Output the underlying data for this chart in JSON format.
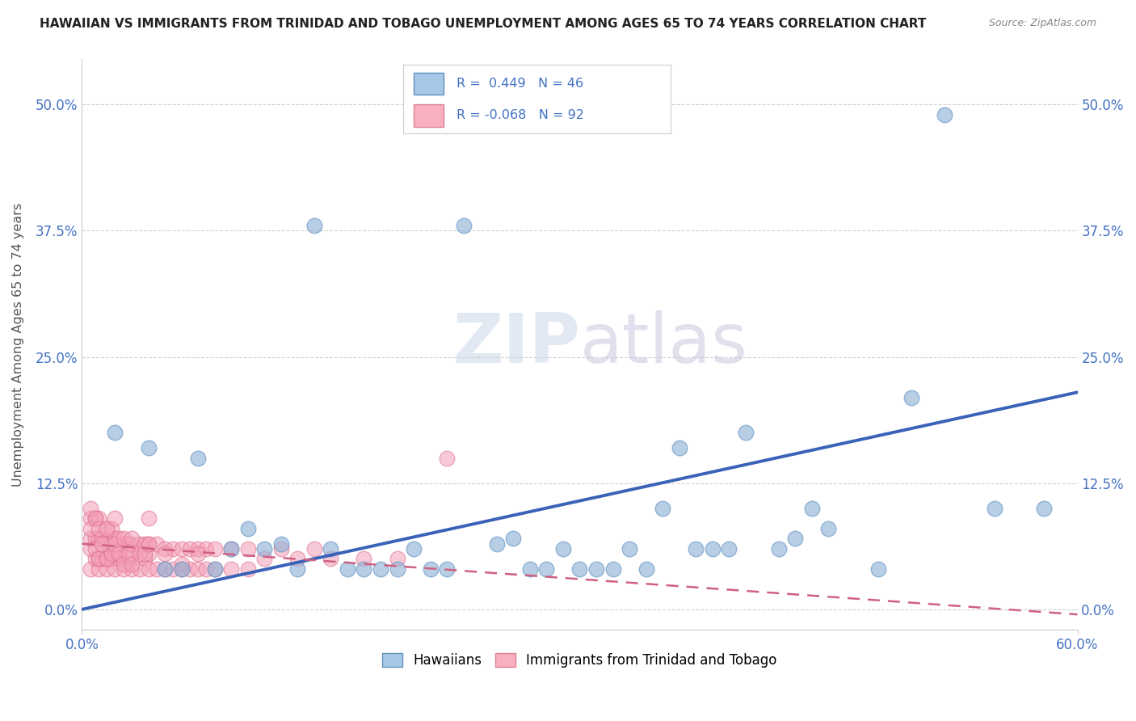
{
  "title": "HAWAIIAN VS IMMIGRANTS FROM TRINIDAD AND TOBAGO UNEMPLOYMENT AMONG AGES 65 TO 74 YEARS CORRELATION CHART",
  "source": "Source: ZipAtlas.com",
  "ylabel_label": "Unemployment Among Ages 65 to 74 years",
  "watermark_zip": "ZIP",
  "watermark_atlas": "atlas",
  "xlim": [
    0.0,
    0.6
  ],
  "ylim": [
    -0.02,
    0.545
  ],
  "yticks": [
    0.0,
    0.125,
    0.25,
    0.375,
    0.5
  ],
  "xticks": [
    0.0,
    0.6
  ],
  "blue_R": 0.449,
  "blue_N": 46,
  "pink_R": -0.068,
  "pink_N": 92,
  "blue_scatter_x": [
    0.02,
    0.04,
    0.07,
    0.08,
    0.09,
    0.1,
    0.12,
    0.13,
    0.15,
    0.16,
    0.18,
    0.2,
    0.22,
    0.27,
    0.3,
    0.33,
    0.35,
    0.36,
    0.37,
    0.38,
    0.4,
    0.42,
    0.43,
    0.45,
    0.48,
    0.5,
    0.52,
    0.55,
    0.25,
    0.28,
    0.32,
    0.14,
    0.21,
    0.26,
    0.23,
    0.17,
    0.11,
    0.06,
    0.05,
    0.19,
    0.31,
    0.29,
    0.34,
    0.39,
    0.44,
    0.58
  ],
  "blue_scatter_y": [
    0.175,
    0.16,
    0.15,
    0.04,
    0.06,
    0.08,
    0.065,
    0.04,
    0.06,
    0.04,
    0.04,
    0.06,
    0.04,
    0.04,
    0.04,
    0.06,
    0.1,
    0.16,
    0.06,
    0.06,
    0.175,
    0.06,
    0.07,
    0.08,
    0.04,
    0.21,
    0.49,
    0.1,
    0.065,
    0.04,
    0.04,
    0.38,
    0.04,
    0.07,
    0.38,
    0.04,
    0.06,
    0.04,
    0.04,
    0.04,
    0.04,
    0.06,
    0.04,
    0.06,
    0.1,
    0.1
  ],
  "pink_scatter_x": [
    0.005,
    0.005,
    0.005,
    0.005,
    0.008,
    0.008,
    0.008,
    0.01,
    0.01,
    0.01,
    0.01,
    0.012,
    0.012,
    0.015,
    0.015,
    0.015,
    0.015,
    0.018,
    0.018,
    0.018,
    0.02,
    0.02,
    0.02,
    0.022,
    0.022,
    0.025,
    0.025,
    0.028,
    0.028,
    0.03,
    0.03,
    0.03,
    0.035,
    0.035,
    0.038,
    0.038,
    0.04,
    0.04,
    0.04,
    0.045,
    0.045,
    0.05,
    0.05,
    0.055,
    0.055,
    0.06,
    0.06,
    0.065,
    0.065,
    0.07,
    0.07,
    0.075,
    0.075,
    0.08,
    0.08,
    0.09,
    0.09,
    0.1,
    0.1,
    0.11,
    0.12,
    0.13,
    0.14,
    0.15,
    0.17,
    0.19,
    0.22,
    0.005,
    0.005,
    0.008,
    0.008,
    0.01,
    0.01,
    0.012,
    0.015,
    0.015,
    0.018,
    0.02,
    0.02,
    0.022,
    0.025,
    0.025,
    0.028,
    0.03,
    0.03,
    0.035,
    0.038,
    0.04,
    0.04,
    0.05,
    0.06,
    0.07
  ],
  "pink_scatter_y": [
    0.04,
    0.06,
    0.07,
    0.09,
    0.05,
    0.07,
    0.09,
    0.04,
    0.05,
    0.07,
    0.09,
    0.05,
    0.07,
    0.04,
    0.05,
    0.065,
    0.08,
    0.05,
    0.065,
    0.08,
    0.04,
    0.055,
    0.07,
    0.05,
    0.07,
    0.04,
    0.065,
    0.05,
    0.065,
    0.04,
    0.055,
    0.065,
    0.04,
    0.065,
    0.05,
    0.065,
    0.04,
    0.055,
    0.065,
    0.04,
    0.065,
    0.04,
    0.06,
    0.04,
    0.06,
    0.04,
    0.06,
    0.04,
    0.06,
    0.04,
    0.06,
    0.04,
    0.06,
    0.04,
    0.06,
    0.04,
    0.06,
    0.04,
    0.06,
    0.05,
    0.06,
    0.05,
    0.06,
    0.05,
    0.05,
    0.05,
    0.15,
    0.08,
    0.1,
    0.06,
    0.09,
    0.05,
    0.08,
    0.065,
    0.05,
    0.08,
    0.055,
    0.065,
    0.09,
    0.055,
    0.045,
    0.07,
    0.055,
    0.045,
    0.07,
    0.055,
    0.055,
    0.065,
    0.09,
    0.055,
    0.045,
    0.055
  ],
  "blue_line_x": [
    0.0,
    0.6
  ],
  "blue_line_y_start": 0.0,
  "blue_line_y_end": 0.215,
  "pink_line_x": [
    0.0,
    0.6
  ],
  "pink_line_y_start": 0.065,
  "pink_line_y_end": -0.005,
  "background_color": "#ffffff",
  "grid_color": "#d0d0d0",
  "scatter_blue_color": "#92b4d6",
  "scatter_blue_edge": "#6a99c8",
  "scatter_pink_color": "#f4a0b8",
  "scatter_pink_edge": "#e07090",
  "trend_blue_color": "#3a62b8",
  "trend_pink_color": "#d06080",
  "tick_label_color": "#4472c4",
  "title_color": "#222222",
  "source_color": "#888888",
  "legend_blue_face": "#a8c8e8",
  "legend_blue_edge": "#6090b8",
  "legend_pink_face": "#f8b0c0",
  "legend_pink_edge": "#e08090"
}
